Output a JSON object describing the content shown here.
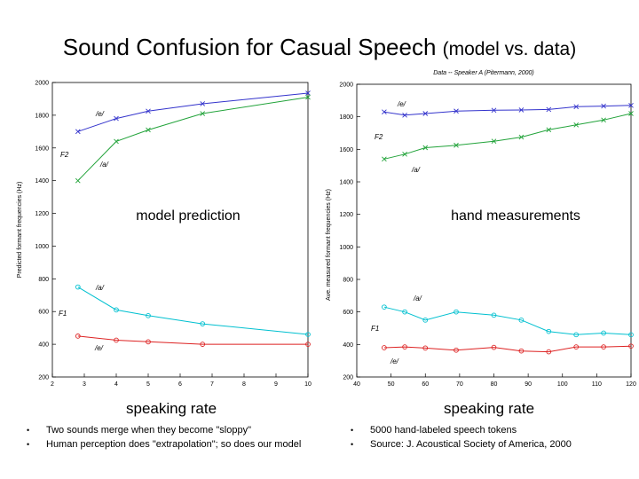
{
  "slide": {
    "title_main": "Sound Confusion for Casual Speech",
    "title_sub": "(model vs. data)",
    "left_caption": "speaking rate",
    "right_caption": "speaking rate",
    "left_bullets": [
      "Two sounds merge when they become \"sloppy\"",
      "Human perception does \"extrapolation\"; so does our model"
    ],
    "right_bullets": [
      "5000 hand-labeled speech tokens",
      "Source: J. Acoustical Society of America, 2000"
    ]
  },
  "chart_data": [
    {
      "type": "line",
      "title": "",
      "overlay_label": "model prediction",
      "xlabel": "",
      "ylabel": "Predicted formant frequencies (Hz)",
      "xlim": [
        2,
        10
      ],
      "ylim": [
        200,
        2000
      ],
      "xticks": [
        2,
        3,
        4,
        5,
        6,
        7,
        8,
        9,
        10
      ],
      "yticks": [
        200,
        400,
        600,
        800,
        1000,
        1200,
        1400,
        1600,
        1800,
        2000
      ],
      "colors": [
        "#3333cc",
        "#22a33a",
        "#00c0d0",
        "#dd2222"
      ],
      "series": [
        {
          "name": "/e/ F2",
          "marker": "x",
          "x": [
            2.8,
            4,
            5,
            6.7,
            10
          ],
          "y": [
            1700,
            1780,
            1825,
            1870,
            1935
          ]
        },
        {
          "name": "/a/ F2",
          "marker": "x",
          "x": [
            2.8,
            4,
            5,
            6.7,
            10
          ],
          "y": [
            1400,
            1640,
            1710,
            1810,
            1910
          ]
        },
        {
          "name": "/a/ F1",
          "marker": "o",
          "x": [
            2.8,
            4,
            5,
            6.7,
            10
          ],
          "y": [
            750,
            610,
            575,
            525,
            460
          ]
        },
        {
          "name": "/e/ F1",
          "marker": "o",
          "x": [
            2.8,
            4,
            5,
            6.7,
            10
          ],
          "y": [
            450,
            425,
            415,
            400,
            400
          ]
        }
      ],
      "annotations": [
        "/e/",
        "F2",
        "/a/",
        "/a/",
        "F1",
        "/e/"
      ]
    },
    {
      "type": "line",
      "title": "Data -- Speaker A (Pitermann, 2000)",
      "overlay_label": "hand measurements",
      "xlabel": "",
      "ylabel": "Ave. measured formant frequencies (Hz)",
      "xlim": [
        40,
        120
      ],
      "ylim": [
        200,
        2000
      ],
      "xticks": [
        40,
        50,
        60,
        70,
        80,
        90,
        100,
        110,
        120
      ],
      "yticks": [
        200,
        400,
        600,
        800,
        1000,
        1200,
        1400,
        1600,
        1800,
        2000
      ],
      "colors": [
        "#3333cc",
        "#22a33a",
        "#00c0d0",
        "#dd2222"
      ],
      "series": [
        {
          "name": "/e/ F2",
          "marker": "x",
          "x": [
            48,
            54,
            60,
            69,
            80,
            88,
            96,
            104,
            112,
            120
          ],
          "y": [
            1830,
            1810,
            1820,
            1835,
            1840,
            1842,
            1845,
            1862,
            1866,
            1870
          ]
        },
        {
          "name": "/a/ F2",
          "marker": "x",
          "x": [
            48,
            54,
            60,
            69,
            80,
            88,
            96,
            104,
            112,
            120
          ],
          "y": [
            1540,
            1570,
            1610,
            1625,
            1650,
            1675,
            1720,
            1750,
            1780,
            1820
          ]
        },
        {
          "name": "/a/ F1",
          "marker": "o",
          "x": [
            48,
            54,
            60,
            69,
            80,
            88,
            96,
            104,
            112,
            120
          ],
          "y": [
            630,
            600,
            550,
            600,
            580,
            550,
            480,
            460,
            470,
            460
          ]
        },
        {
          "name": "/e/ F1",
          "marker": "o",
          "x": [
            48,
            54,
            60,
            69,
            80,
            88,
            96,
            104,
            112,
            120
          ],
          "y": [
            380,
            385,
            378,
            365,
            382,
            360,
            355,
            385,
            385,
            390
          ]
        }
      ],
      "annotations": [
        "/e/",
        "F2",
        "/a/",
        "/a/",
        "F1",
        "/e/"
      ]
    }
  ]
}
